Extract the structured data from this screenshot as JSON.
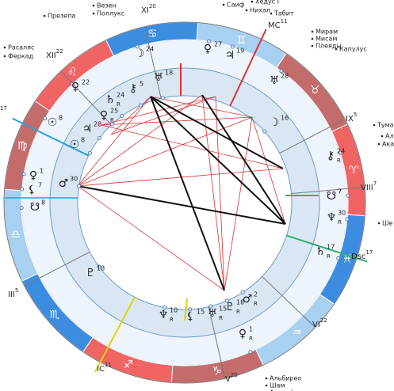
{
  "signs": [
    "♈",
    "♉",
    "♊",
    "♋",
    "♌",
    "♍",
    "♎",
    "♏",
    "♐",
    "♑",
    "♒",
    "♓"
  ],
  "houses": [
    {
      "label": "MC",
      "degree": 11
    },
    {
      "label": "XI",
      "degree": 20
    },
    {
      "label": "XII",
      "degree": 22
    },
    {
      "label": "",
      "degree": 17
    },
    {
      "label": "III",
      "degree": 5
    },
    {
      "label": "IC",
      "degree": 11
    },
    {
      "label": "V",
      "degree": 20
    },
    {
      "label": "VI",
      "degree": 22
    },
    {
      "label": "Dsc",
      "degree": 17
    },
    {
      "label": "VIII",
      "degree": 7
    },
    {
      "label": "IX",
      "degree": 5
    }
  ],
  "stars": [
    "Везен",
    "Поллукс",
    "Презепа",
    "Расаляс",
    "Феркад",
    "Саиф",
    "Хедус I",
    "Нихал",
    "Табит",
    "Мирам",
    "Мисам",
    "Плеяды",
    "Капулус",
    "Тума",
    "Ал",
    "Ака",
    "Ше",
    "Альбирео",
    "Шам",
    "Альсафи"
  ],
  "planets": [
    {
      "glyph": "☽",
      "degree": 24
    },
    {
      "glyph": "♀",
      "degree": 27
    },
    {
      "glyph": "♃",
      "degree": 19
    },
    {
      "glyph": "♀",
      "degree": 22
    },
    {
      "glyph": "⚷",
      "degree": 5
    },
    {
      "glyph": "♅",
      "degree": 18
    },
    {
      "glyph": "♅",
      "degree": 28
    },
    {
      "glyph": "☉",
      "degree": 8
    },
    {
      "glyph": "♄",
      "degree": 24,
      "retro": "R"
    },
    {
      "glyph": "♀",
      "degree": 25,
      "retro": "R"
    },
    {
      "glyph": "♃",
      "degree": 28
    },
    {
      "glyph": "☉",
      "degree": 8
    },
    {
      "glyph": "☽",
      "degree": 16
    },
    {
      "glyph": "⚷",
      "degree": 24,
      "retro": "R"
    },
    {
      "glyph": "♀",
      "degree": 1
    },
    {
      "glyph": "♂",
      "degree": 30
    },
    {
      "glyph": "⚸",
      "degree": 7
    },
    {
      "glyph": "☋",
      "degree": 8
    },
    {
      "glyph": "☋",
      "degree": 7
    },
    {
      "glyph": "♆",
      "degree": 30,
      "retro": "R"
    },
    {
      "glyph": "♄",
      "degree": 17,
      "retro": "R"
    },
    {
      "glyph": "♇",
      "degree": 18
    },
    {
      "glyph": "♆",
      "degree": 10,
      "retro": "R"
    },
    {
      "glyph": "⚸",
      "degree": 15
    },
    {
      "glyph": "♅",
      "degree": 15,
      "retro": "R"
    },
    {
      "glyph": "♇",
      "degree": 18,
      "retro": "R"
    },
    {
      "glyph": "♂",
      "degree": 2,
      "retro": "R"
    },
    {
      "glyph": "♀",
      "degree": 1,
      "retro": "R"
    }
  ]
}
